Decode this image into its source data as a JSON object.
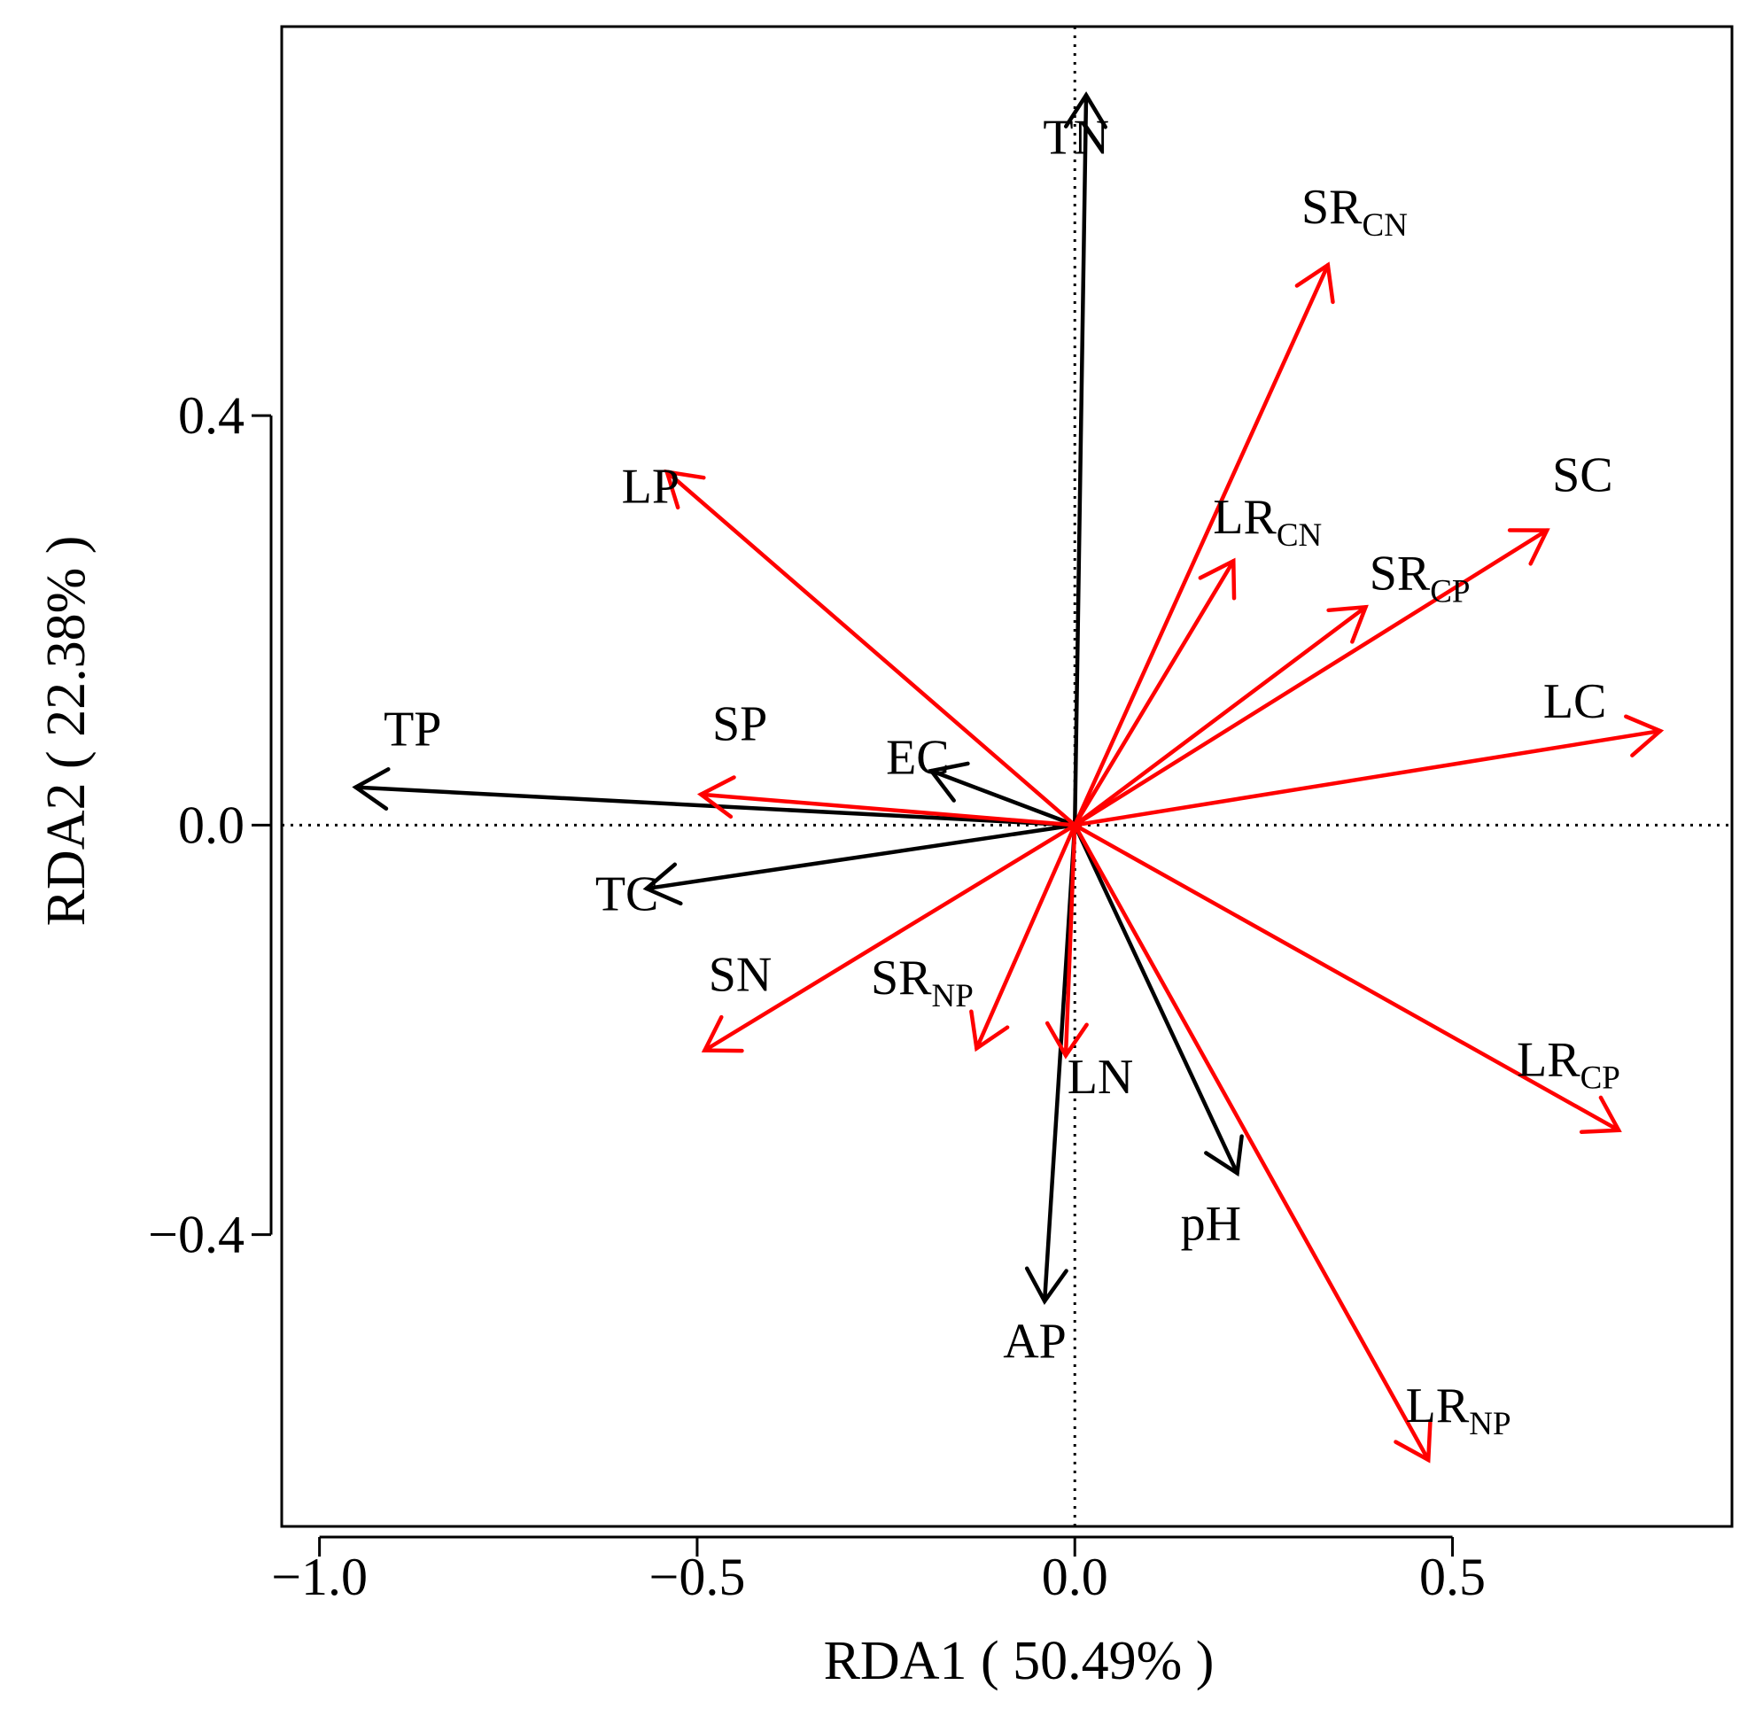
{
  "chart_data": {
    "type": "biplot",
    "xlabel": "RDA1 ( 50.49% )",
    "ylabel": "RDA2 ( 22.38% )",
    "xlim": [
      -1.05,
      0.87
    ],
    "ylim": [
      -0.685,
      0.78
    ],
    "reference_lines": {
      "x": 0,
      "y": 0,
      "style": "dotted"
    },
    "x_ticks": [
      {
        "value": -1.0,
        "label": "−1.0"
      },
      {
        "value": -0.5,
        "label": "−0.5"
      },
      {
        "value": 0.0,
        "label": "0.0"
      },
      {
        "value": 0.5,
        "label": "0.5"
      }
    ],
    "y_ticks": [
      {
        "value": -0.4,
        "label": "−0.4"
      },
      {
        "value": 0.0,
        "label": "0.0"
      },
      {
        "value": 0.4,
        "label": "0.4"
      }
    ],
    "colors": {
      "environment": "#000000",
      "response": "#ff0000"
    },
    "vectors": [
      {
        "name": "TN",
        "main": "TN",
        "sub": "",
        "group": "environment",
        "x": 0.015,
        "y": 0.713,
        "lx": -0.042,
        "ly": 0.656
      },
      {
        "name": "TP",
        "main": "TP",
        "sub": "",
        "group": "environment",
        "x": -0.952,
        "y": 0.037,
        "lx": -0.915,
        "ly": 0.078
      },
      {
        "name": "TC",
        "main": "TC",
        "sub": "",
        "group": "environment",
        "x": -0.567,
        "y": -0.062,
        "lx": -0.635,
        "ly": -0.083
      },
      {
        "name": "EC",
        "main": "EC",
        "sub": "",
        "group": "environment",
        "x": -0.19,
        "y": 0.053,
        "lx": -0.25,
        "ly": 0.05
      },
      {
        "name": "AP",
        "main": "AP",
        "sub": "",
        "group": "environment",
        "x": -0.04,
        "y": -0.465,
        "lx": -0.095,
        "ly": -0.52
      },
      {
        "name": "pH",
        "main": "pH",
        "sub": "",
        "group": "environment",
        "x": 0.215,
        "y": -0.34,
        "lx": 0.14,
        "ly": -0.405
      },
      {
        "name": "SRCN",
        "main": "SR",
        "sub": "CN",
        "group": "response",
        "x": 0.335,
        "y": 0.547,
        "lx": 0.3,
        "ly": 0.588
      },
      {
        "name": "SC",
        "main": "SC",
        "sub": "",
        "group": "response",
        "x": 0.625,
        "y": 0.288,
        "lx": 0.632,
        "ly": 0.326
      },
      {
        "name": "LRCN",
        "main": "LR",
        "sub": "CN",
        "group": "response",
        "x": 0.21,
        "y": 0.258,
        "lx": 0.183,
        "ly": 0.285
      },
      {
        "name": "SRCP",
        "main": "SR",
        "sub": "CP",
        "group": "response",
        "x": 0.385,
        "y": 0.213,
        "lx": 0.39,
        "ly": 0.23
      },
      {
        "name": "LC",
        "main": "LC",
        "sub": "",
        "group": "response",
        "x": 0.775,
        "y": 0.092,
        "lx": 0.62,
        "ly": 0.105
      },
      {
        "name": "LP",
        "main": "LP",
        "sub": "",
        "group": "response",
        "x": -0.54,
        "y": 0.345,
        "lx": -0.6,
        "ly": 0.315
      },
      {
        "name": "SP",
        "main": "SP",
        "sub": "",
        "group": "response",
        "x": -0.495,
        "y": 0.03,
        "lx": -0.48,
        "ly": 0.083
      },
      {
        "name": "SN",
        "main": "SN",
        "sub": "",
        "group": "response",
        "x": -0.49,
        "y": -0.22,
        "lx": -0.485,
        "ly": -0.162
      },
      {
        "name": "SRNP",
        "main": "SR",
        "sub": "NP",
        "group": "response",
        "x": -0.13,
        "y": -0.218,
        "lx": -0.27,
        "ly": -0.165
      },
      {
        "name": "LN",
        "main": "LN",
        "sub": "",
        "group": "response",
        "x": -0.012,
        "y": -0.225,
        "lx": -0.01,
        "ly": -0.262
      },
      {
        "name": "LRCP",
        "main": "LR",
        "sub": "CP",
        "group": "response",
        "x": 0.72,
        "y": -0.298,
        "lx": 0.585,
        "ly": -0.245
      },
      {
        "name": "LRNP",
        "main": "LR",
        "sub": "NP",
        "group": "response",
        "x": 0.468,
        "y": -0.62,
        "lx": 0.438,
        "ly": -0.583
      }
    ]
  }
}
